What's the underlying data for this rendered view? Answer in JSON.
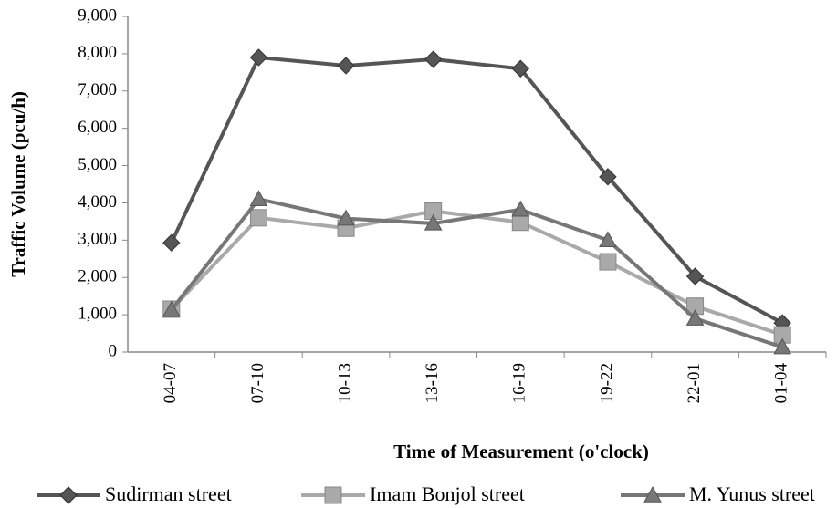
{
  "chart_data": {
    "type": "line",
    "x_label": "Time of Measurement (o'clock)",
    "y_label": "Traffic Volume (pcu/h)",
    "categories": [
      "04-07",
      "07-10",
      "10-13",
      "13-16",
      "16-19",
      "19-22",
      "22-01",
      "01-04"
    ],
    "series": [
      {
        "name": "Sudirman street",
        "color": "#555555",
        "marker": "diamond",
        "values": [
          2930,
          7900,
          7680,
          7850,
          7600,
          4700,
          2030,
          780
        ]
      },
      {
        "name": "Imam Bonjol street",
        "color": "#a9a9a9",
        "marker": "square",
        "values": [
          1150,
          3600,
          3320,
          3780,
          3480,
          2420,
          1230,
          460
        ]
      },
      {
        "name": "M. Yunus street",
        "color": "#777777",
        "marker": "triangle",
        "values": [
          1130,
          4100,
          3580,
          3450,
          3820,
          3000,
          900,
          130
        ]
      }
    ],
    "ylim": [
      0,
      9000
    ],
    "yticks": [
      0,
      {
        "value": 1000,
        "label": "1,000"
      },
      {
        "value": 2000,
        "label": "2,000"
      },
      {
        "value": 3000,
        "label": "3,000"
      },
      {
        "value": 4000,
        "label": "4,000"
      },
      {
        "value": 5000,
        "label": "5,000"
      },
      {
        "value": 6000,
        "label": "6,000"
      },
      {
        "value": 7000,
        "label": "7,000"
      },
      {
        "value": 8000,
        "label": "8,000"
      },
      {
        "value": 9000,
        "label": "9,000"
      }
    ],
    "grid": false,
    "legend": "bottom"
  }
}
